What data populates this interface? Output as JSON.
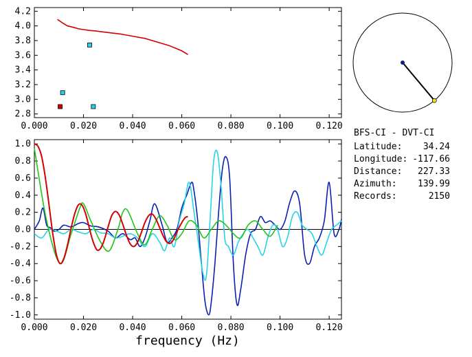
{
  "info": {
    "pair": "BFS-CI  -  DVT-CI",
    "rows": [
      {
        "label": "Latitude:",
        "value": "34.24"
      },
      {
        "label": "Longitude:",
        "value": "-117.66"
      },
      {
        "label": "Distance:",
        "value": "227.33"
      },
      {
        "label": "Azimuth:",
        "value": "139.99"
      },
      {
        "label": "Records:",
        "value": "2150"
      }
    ]
  },
  "colors": {
    "red": "#d40000",
    "blue": "#0a1fb4",
    "cyan": "#27d2e6",
    "green": "#22c41a",
    "yellow": "#f4e21b",
    "navy": "#0a1f8c"
  },
  "chart_data": [
    {
      "type": "scatter",
      "xlim": [
        0,
        0.125
      ],
      "ylim": [
        2.75,
        4.25
      ],
      "xticks": [
        "0.000",
        "0.020",
        "0.040",
        "0.060",
        "0.080",
        "0.100",
        "0.120"
      ],
      "xtick_values": [
        0,
        0.02,
        0.04,
        0.06,
        0.08,
        0.1,
        0.12
      ],
      "yticks": [
        "2.8",
        "3.0",
        "3.2",
        "3.4",
        "3.6",
        "3.8",
        "4.0",
        "4.2"
      ],
      "ytick_values": [
        2.8,
        3.0,
        3.2,
        3.4,
        3.6,
        3.8,
        4.0,
        4.2
      ],
      "series": [
        {
          "kind": "line",
          "color": "red",
          "x": [
            0.0094,
            0.0115,
            0.0135,
            0.016,
            0.018,
            0.02,
            0.022,
            0.025,
            0.03,
            0.035,
            0.04,
            0.045,
            0.05,
            0.055,
            0.06,
            0.0625
          ],
          "y": [
            4.09,
            4.04,
            4.0,
            3.98,
            3.96,
            3.95,
            3.94,
            3.93,
            3.91,
            3.89,
            3.86,
            3.83,
            3.78,
            3.73,
            3.66,
            3.61
          ]
        },
        {
          "kind": "points",
          "color": "cyan",
          "x": [
            0.0225,
            0.0115,
            0.024
          ],
          "y": [
            3.74,
            3.09,
            2.9
          ]
        },
        {
          "kind": "points",
          "color": "red",
          "x": [
            0.0105
          ],
          "y": [
            2.9
          ]
        }
      ]
    },
    {
      "type": "line",
      "xlabel": "frequency (Hz)",
      "xlim": [
        0,
        0.125
      ],
      "ylim": [
        -1.05,
        1.05
      ],
      "xticks": [
        "0.000",
        "0.020",
        "0.040",
        "0.060",
        "0.080",
        "0.100",
        "0.120"
      ],
      "xtick_values": [
        0,
        0.02,
        0.04,
        0.06,
        0.08,
        0.1,
        0.12
      ],
      "yticks": [
        "-1.0",
        "-0.8",
        "-0.6",
        "-0.4",
        "-0.2",
        "0.0",
        "0.2",
        "0.4",
        "0.6",
        "0.8",
        "1.0"
      ],
      "ytick_values": [
        -1.0,
        -0.8,
        -0.6,
        -0.4,
        -0.2,
        0.0,
        0.2,
        0.4,
        0.6,
        0.8,
        1.0
      ],
      "zero_line": true,
      "series": [
        {
          "color": "blue",
          "x": [
            0,
            0.002,
            0.0035,
            0.005,
            0.0065,
            0.008,
            0.01,
            0.012,
            0.015,
            0.018,
            0.02,
            0.023,
            0.026,
            0.03,
            0.033,
            0.036,
            0.039,
            0.041,
            0.043,
            0.045,
            0.047,
            0.049,
            0.052,
            0.054,
            0.056,
            0.058,
            0.06,
            0.062,
            0.064,
            0.065,
            0.0665,
            0.068,
            0.0695,
            0.071,
            0.072,
            0.0735,
            0.075,
            0.0765,
            0.078,
            0.0795,
            0.081,
            0.0825,
            0.084,
            0.086,
            0.088,
            0.09,
            0.092,
            0.094,
            0.096,
            0.098,
            0.1,
            0.102,
            0.104,
            0.106,
            0.108,
            0.11,
            0.112,
            0.114,
            0.116,
            0.118,
            0.12,
            0.122,
            0.124,
            0.125
          ],
          "y": [
            0.0,
            0.1,
            0.25,
            0.05,
            0.02,
            -0.02,
            0.0,
            0.05,
            0.03,
            0.07,
            0.08,
            0.04,
            0.03,
            -0.02,
            -0.1,
            -0.05,
            -0.12,
            -0.1,
            -0.2,
            -0.1,
            0.1,
            0.3,
            0.05,
            -0.15,
            -0.1,
            0.0,
            0.25,
            0.4,
            0.55,
            0.45,
            0.1,
            -0.4,
            -0.85,
            -1.0,
            -0.85,
            -0.4,
            0.2,
            0.7,
            0.85,
            0.6,
            -0.4,
            -0.88,
            -0.7,
            -0.3,
            -0.05,
            0.0,
            0.15,
            0.08,
            0.1,
            0.05,
            0.0,
            0.1,
            0.32,
            0.45,
            0.3,
            -0.3,
            -0.4,
            -0.2,
            -0.1,
            0.1,
            0.55,
            -0.05,
            0.0,
            0.12
          ]
        },
        {
          "color": "cyan",
          "x": [
            0,
            0.003,
            0.006,
            0.009,
            0.012,
            0.015,
            0.018,
            0.021,
            0.024,
            0.027,
            0.03,
            0.033,
            0.036,
            0.039,
            0.042,
            0.045,
            0.048,
            0.051,
            0.053,
            0.055,
            0.057,
            0.059,
            0.061,
            0.063,
            0.065,
            0.067,
            0.0685,
            0.07,
            0.0715,
            0.073,
            0.0745,
            0.076,
            0.0775,
            0.079,
            0.081,
            0.083,
            0.085,
            0.087,
            0.089,
            0.091,
            0.093,
            0.095,
            0.097,
            0.099,
            0.101,
            0.103,
            0.105,
            0.107,
            0.109,
            0.111,
            0.113,
            0.115,
            0.117,
            0.119,
            0.121,
            0.123,
            0.125
          ],
          "y": [
            -0.05,
            -0.1,
            0.0,
            -0.02,
            -0.05,
            0.0,
            -0.03,
            -0.05,
            0.0,
            -0.04,
            -0.05,
            -0.1,
            -0.08,
            -0.05,
            -0.1,
            -0.2,
            -0.05,
            -0.15,
            -0.25,
            -0.1,
            -0.2,
            0.1,
            0.3,
            0.55,
            0.2,
            -0.2,
            -0.5,
            -0.55,
            0.1,
            0.8,
            0.9,
            0.5,
            -0.1,
            -0.2,
            -0.3,
            -0.15,
            -0.05,
            0.0,
            -0.1,
            -0.2,
            -0.3,
            -0.1,
            0.05,
            0.0,
            -0.2,
            -0.1,
            0.15,
            0.2,
            0.05,
            0.0,
            -0.05,
            -0.2,
            -0.3,
            -0.15,
            0.0,
            0.05,
            0.1
          ]
        },
        {
          "color": "green",
          "x": [
            0,
            0.005,
            0.0105,
            0.015,
            0.0185,
            0.02,
            0.023,
            0.027,
            0.0305,
            0.034,
            0.036,
            0.038,
            0.042,
            0.045,
            0.048,
            0.051,
            0.054,
            0.057,
            0.06,
            0.063,
            0.066,
            0.069,
            0.072,
            0.075,
            0.078,
            0.081,
            0.084,
            0.087,
            0.09,
            0.093,
            0.096,
            0.099
          ],
          "y": [
            0.95,
            0.1,
            -0.4,
            -0.05,
            0.25,
            0.3,
            0.1,
            -0.15,
            -0.25,
            0.0,
            0.2,
            0.22,
            -0.05,
            -0.18,
            0.0,
            0.16,
            0.05,
            -0.12,
            -0.05,
            0.1,
            0.05,
            -0.1,
            0.0,
            0.1,
            0.05,
            -0.05,
            -0.1,
            0.05,
            0.1,
            0.0,
            -0.08,
            0.05
          ]
        },
        {
          "color": "red",
          "x": [
            0,
            0.0015,
            0.003,
            0.0045,
            0.006,
            0.0075,
            0.009,
            0.0105,
            0.012,
            0.0135,
            0.015,
            0.0165,
            0.018,
            0.0195,
            0.021,
            0.0225,
            0.024,
            0.0255,
            0.027,
            0.0285,
            0.03,
            0.0315,
            0.033,
            0.0345,
            0.036,
            0.0375,
            0.039,
            0.0405,
            0.042,
            0.0435,
            0.045,
            0.0465,
            0.048,
            0.0495,
            0.051,
            0.0525,
            0.054,
            0.0555,
            0.057,
            0.0585,
            0.06,
            0.0615,
            0.0625
          ],
          "y": [
            1.0,
            0.97,
            0.85,
            0.6,
            0.28,
            -0.05,
            -0.3,
            -0.4,
            -0.34,
            -0.18,
            0.02,
            0.19,
            0.29,
            0.28,
            0.17,
            0.0,
            -0.15,
            -0.24,
            -0.22,
            -0.12,
            0.03,
            0.16,
            0.21,
            0.17,
            0.06,
            -0.07,
            -0.17,
            -0.2,
            -0.15,
            -0.04,
            0.08,
            0.16,
            0.18,
            0.12,
            0.02,
            -0.08,
            -0.15,
            -0.16,
            -0.1,
            0.0,
            0.08,
            0.14,
            0.15
          ]
        }
      ]
    },
    {
      "type": "scatter",
      "kind": "azimuth-dial",
      "azimuth_deg": 139.99,
      "colors": {
        "center": "navy",
        "end": "yellow"
      }
    }
  ]
}
